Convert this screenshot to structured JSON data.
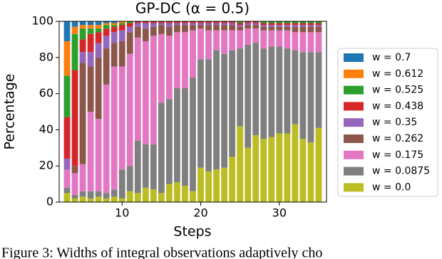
{
  "chart_data": {
    "type": "stacked_bar",
    "title": "GP-DC (α = 0.5)",
    "x_label": "Steps",
    "y_label": "Percentage",
    "caption": "Figure 3: Widths of integral observations adaptively cho",
    "x": [
      3,
      4,
      5,
      6,
      7,
      8,
      9,
      10,
      11,
      12,
      13,
      14,
      15,
      16,
      17,
      18,
      19,
      20,
      21,
      22,
      23,
      24,
      25,
      26,
      27,
      28,
      29,
      30,
      31,
      32,
      33,
      34,
      35
    ],
    "xlim": [
      2,
      36
    ],
    "xticks": [
      10,
      20,
      30
    ],
    "ylim": [
      0,
      100
    ],
    "yticks": [
      0,
      20,
      40,
      60,
      80,
      100
    ],
    "legend_position": "right",
    "series": [
      {
        "name": "w = 0.0",
        "color": "#bcbd22",
        "values": [
          5,
          2,
          3,
          2,
          3,
          2,
          3,
          2,
          6,
          5,
          8,
          7,
          5,
          10,
          11,
          9,
          6,
          19,
          17,
          18,
          19,
          25,
          42,
          30,
          37,
          35,
          36,
          38,
          38,
          43,
          35,
          33,
          41
        ]
      },
      {
        "name": "w = 0.0875",
        "color": "#7f7f7f",
        "values": [
          3,
          2,
          3,
          4,
          3,
          3,
          4,
          16,
          14,
          29,
          24,
          25,
          50,
          47,
          52,
          54,
          63,
          60,
          62,
          66,
          63,
          59,
          43,
          57,
          51,
          50,
          50,
          48,
          47,
          41,
          48,
          50,
          42
        ]
      },
      {
        "name": "w = 0.175",
        "color": "#e377c2",
        "values": [
          10,
          12,
          15,
          44,
          40,
          60,
          68,
          57,
          62,
          57,
          57,
          60,
          38,
          35,
          31,
          31,
          26,
          17,
          16,
          11,
          13,
          11,
          10,
          9,
          8,
          10,
          9,
          9,
          10,
          10,
          11,
          11,
          11
        ]
      },
      {
        "name": "w = 0.262",
        "color": "#8c564b",
        "values": [
          0,
          4,
          56,
          25,
          34,
          20,
          13,
          14,
          12,
          6,
          7,
          5,
          5,
          5,
          4,
          4,
          3,
          2,
          3,
          3,
          3,
          3,
          2,
          2,
          2,
          2,
          2,
          2,
          2,
          3,
          3,
          3,
          3
        ]
      },
      {
        "name": "w = 0.35",
        "color": "#9467bd",
        "values": [
          6,
          0,
          6,
          8,
          8,
          7,
          6,
          6,
          3,
          2,
          3,
          2,
          1,
          2,
          1,
          1,
          1,
          1,
          1,
          1,
          1,
          1,
          1,
          1,
          1,
          1,
          1,
          1,
          1,
          1,
          1,
          1,
          1
        ]
      },
      {
        "name": "w = 0.438",
        "color": "#d62728",
        "values": [
          23,
          53,
          7,
          10,
          6,
          4,
          3,
          3,
          2,
          1,
          1,
          1,
          1,
          1,
          1,
          1,
          1,
          1,
          1,
          1,
          1,
          1,
          1,
          1,
          1,
          1,
          1,
          1,
          1,
          1,
          1,
          1,
          1
        ]
      },
      {
        "name": "w = 0.525",
        "color": "#2ca02c",
        "values": [
          23,
          20,
          6,
          3,
          2,
          2,
          1,
          1,
          1,
          0,
          0,
          0,
          0,
          0,
          0,
          0,
          0,
          0,
          0,
          0,
          0,
          0,
          1,
          0,
          0,
          1,
          1,
          1,
          1,
          1,
          1,
          1,
          1
        ]
      },
      {
        "name": "w = 0.612",
        "color": "#ff7f0e",
        "values": [
          19,
          4,
          2,
          2,
          2,
          1,
          1,
          1,
          0,
          0,
          0,
          0,
          0,
          0,
          0,
          0,
          0,
          0,
          0,
          0,
          0,
          0,
          0,
          0,
          0,
          0,
          0,
          0,
          0,
          0,
          0,
          0,
          0
        ]
      },
      {
        "name": "w = 0.7",
        "color": "#1f77b4",
        "values": [
          11,
          3,
          2,
          2,
          2,
          1,
          1,
          0,
          0,
          0,
          0,
          0,
          0,
          0,
          0,
          0,
          0,
          0,
          0,
          0,
          0,
          0,
          0,
          0,
          0,
          0,
          0,
          0,
          0,
          0,
          0,
          0,
          0
        ]
      }
    ]
  }
}
